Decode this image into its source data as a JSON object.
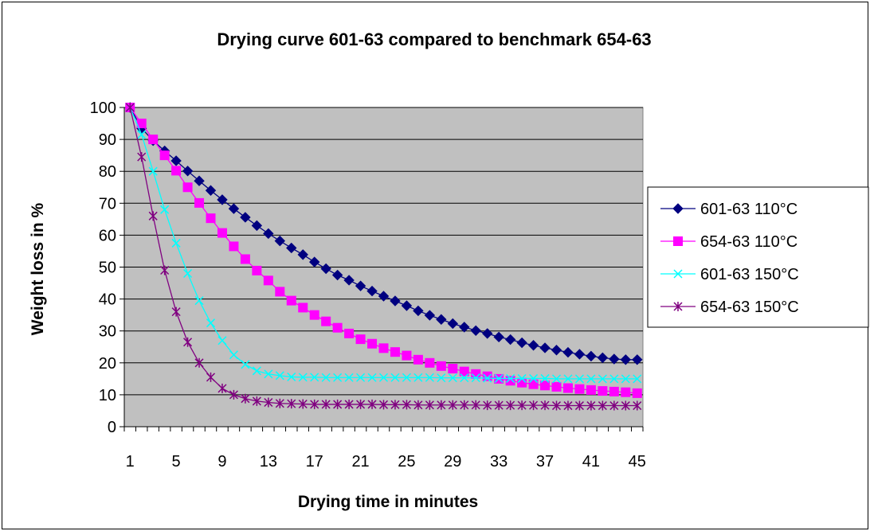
{
  "chart_data": {
    "type": "line",
    "title": "Drying curve 601-63 compared to benchmark 654-63",
    "xlabel": "Drying time in minutes",
    "ylabel": "Weight loss in %",
    "ylim": [
      0,
      100
    ],
    "yticks": [
      0,
      10,
      20,
      30,
      40,
      50,
      60,
      70,
      80,
      90,
      100
    ],
    "x_tick_labels": [
      "1",
      "5",
      "9",
      "13",
      "17",
      "21",
      "25",
      "29",
      "33",
      "37",
      "41",
      "45"
    ],
    "x": [
      1,
      2,
      3,
      4,
      5,
      6,
      7,
      8,
      9,
      10,
      11,
      12,
      13,
      14,
      15,
      16,
      17,
      18,
      19,
      20,
      21,
      22,
      23,
      24,
      25,
      26,
      27,
      28,
      29,
      30,
      31,
      32,
      33,
      34,
      35,
      36,
      37,
      38,
      39,
      40,
      41,
      42,
      43,
      44,
      45
    ],
    "plot_background": "#c0c0c0",
    "grid": "horizontal",
    "legend_position": "right",
    "series": [
      {
        "name": "601-63 110°C",
        "color": "#000080",
        "marker": "diamond",
        "values": [
          100,
          93.5,
          89.6,
          86.4,
          83.3,
          80.1,
          77.0,
          74.0,
          71.1,
          68.3,
          65.6,
          63.0,
          60.5,
          58.2,
          56.0,
          53.9,
          51.6,
          49.5,
          47.5,
          45.9,
          44.1,
          42.5,
          40.9,
          39.4,
          37.9,
          36.3,
          34.9,
          33.6,
          32.3,
          31.2,
          30.1,
          29.2,
          28.1,
          27.3,
          26.3,
          25.5,
          24.7,
          24.0,
          23.3,
          22.7,
          22.1,
          21.6,
          21.2,
          21.0,
          21.0
        ]
      },
      {
        "name": "654-63 110°C",
        "color": "#ff00ff",
        "marker": "square",
        "values": [
          100,
          95.0,
          90.0,
          85.0,
          80.2,
          75.0,
          70.1,
          65.3,
          60.7,
          56.5,
          52.5,
          48.9,
          45.8,
          42.3,
          39.5,
          37.3,
          35.0,
          33.0,
          31.0,
          29.2,
          27.4,
          26.0,
          24.6,
          23.4,
          22.3,
          21.0,
          20.0,
          19.0,
          18.2,
          17.3,
          16.5,
          15.8,
          15.0,
          14.4,
          13.8,
          13.3,
          12.9,
          12.5,
          12.1,
          11.8,
          11.5,
          11.2,
          11.0,
          10.8,
          10.5
        ]
      },
      {
        "name": "601-63 150°C",
        "color": "#00ffff",
        "marker": "x",
        "values": [
          100,
          91.5,
          80.0,
          68.0,
          57.5,
          48.0,
          39.5,
          32.5,
          27.0,
          22.5,
          19.5,
          17.5,
          16.5,
          16.0,
          15.6,
          15.5,
          15.5,
          15.4,
          15.4,
          15.4,
          15.4,
          15.4,
          15.4,
          15.4,
          15.4,
          15.4,
          15.4,
          15.3,
          15.3,
          15.3,
          15.3,
          15.2,
          15.1,
          15.1,
          15.1,
          15.1,
          15.1,
          15.0,
          15.0,
          15.0,
          15.0,
          15.0,
          15.0,
          15.0,
          15.0
        ]
      },
      {
        "name": "654-63 150°C",
        "color": "#800080",
        "marker": "star",
        "values": [
          100,
          84.5,
          66.0,
          49.0,
          36.0,
          26.5,
          20.0,
          15.5,
          12.0,
          10.0,
          8.8,
          8.0,
          7.6,
          7.3,
          7.2,
          7.1,
          7.0,
          7.0,
          7.0,
          7.0,
          7.0,
          7.0,
          6.9,
          6.9,
          6.9,
          6.8,
          6.8,
          6.8,
          6.8,
          6.8,
          6.8,
          6.7,
          6.7,
          6.7,
          6.7,
          6.7,
          6.7,
          6.6,
          6.6,
          6.6,
          6.6,
          6.6,
          6.6,
          6.6,
          6.6
        ]
      }
    ]
  }
}
